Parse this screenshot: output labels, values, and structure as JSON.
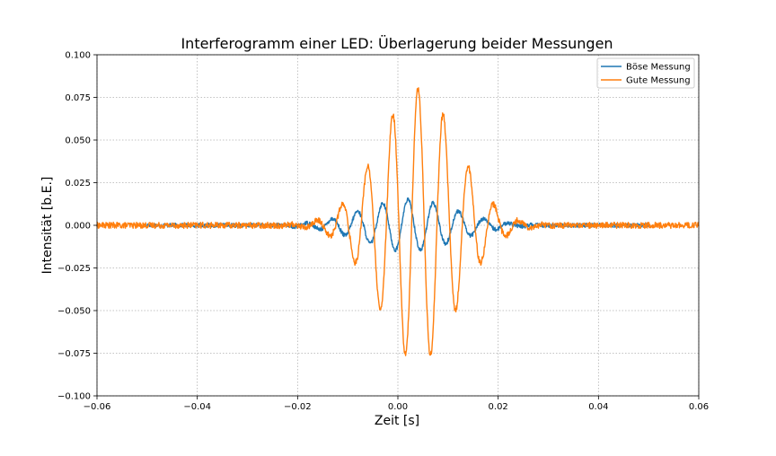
{
  "chart_data": {
    "type": "line",
    "title": "Interferogramm einer LED: Überlagerung beider Messungen",
    "xlabel": "Zeit [s]",
    "ylabel": "Intensität [b.E.]",
    "xlim": [
      -0.06,
      0.06
    ],
    "ylim": [
      -0.1,
      0.1
    ],
    "xticks": [
      -0.06,
      -0.04,
      -0.02,
      0.0,
      0.02,
      0.04,
      0.06
    ],
    "xtick_labels": [
      "−0.06",
      "−0.04",
      "−0.02",
      "0.00",
      "0.02",
      "0.04",
      "0.06"
    ],
    "yticks": [
      -0.1,
      -0.075,
      -0.05,
      -0.025,
      0.0,
      0.025,
      0.05,
      0.075,
      0.1
    ],
    "ytick_labels": [
      "−0.100",
      "−0.075",
      "−0.050",
      "−0.025",
      "0.000",
      "0.025",
      "0.050",
      "0.075",
      "0.100"
    ],
    "grid": true,
    "legend_position": "upper right",
    "series": [
      {
        "name": "Böse Messung",
        "color": "#1f77b4",
        "x_range": [
          -0.05,
          0.05
        ],
        "envelope_center": 0.002,
        "envelope_peak": 0.015,
        "envelope_width": 0.013,
        "period": 0.00505,
        "baseline_noise": 0.002
      },
      {
        "name": "Gute Messung",
        "color": "#ff7f0e",
        "x_range": [
          -0.06,
          0.06
        ],
        "envelope_center": 0.004,
        "envelope_peak": 0.08,
        "envelope_width": 0.011,
        "period": 0.00505,
        "baseline_noise": 0.003
      }
    ]
  }
}
